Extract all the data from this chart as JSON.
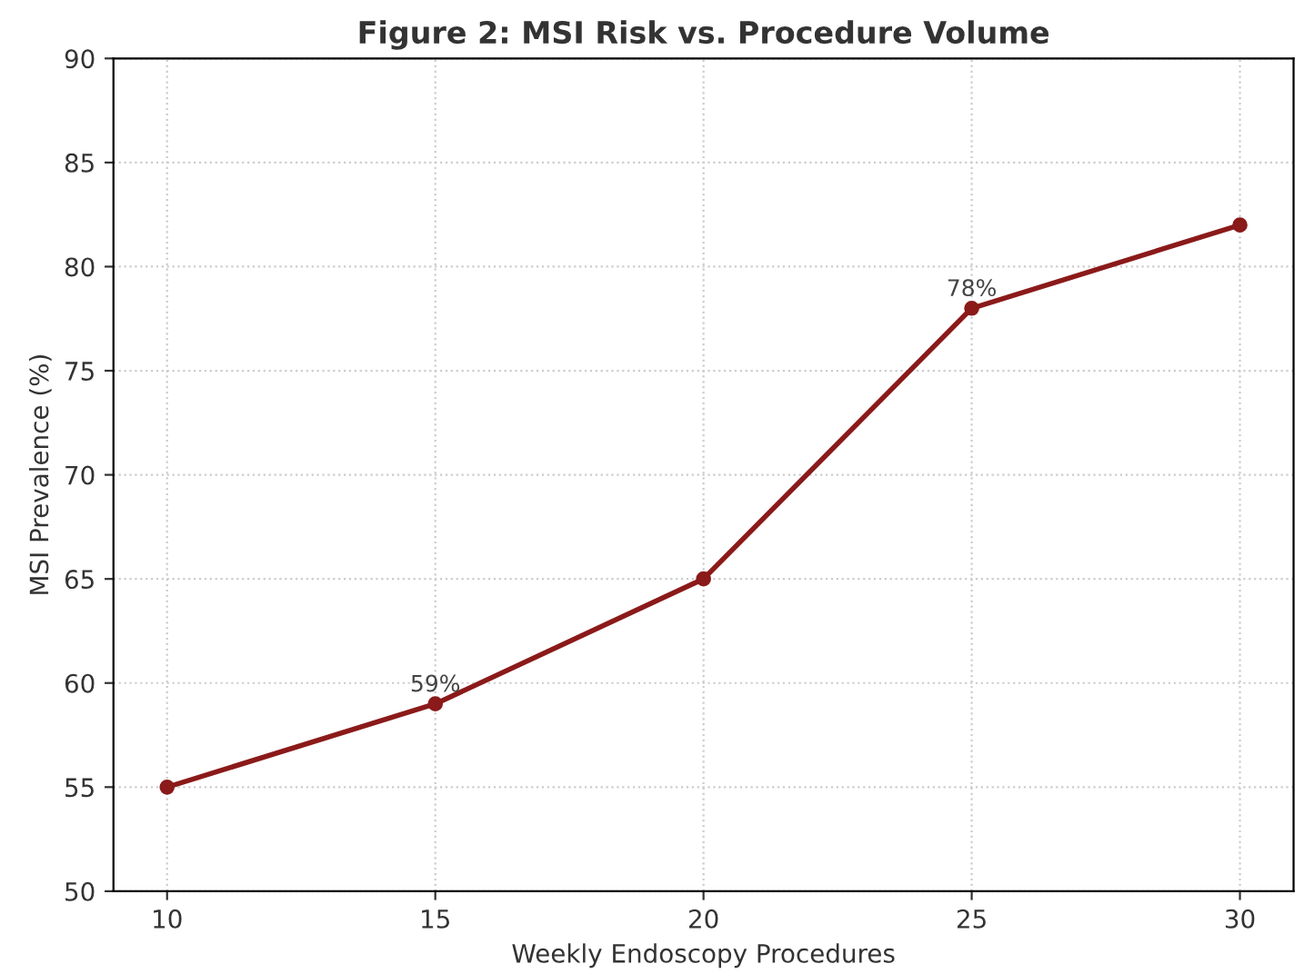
{
  "chart_data": {
    "type": "line",
    "title": "Figure 2: MSI Risk vs. Procedure Volume",
    "xlabel": "Weekly Endoscopy Procedures",
    "ylabel": "MSI Prevalence (%)",
    "x": [
      10,
      15,
      20,
      25,
      30
    ],
    "series": [
      {
        "color": "#8b1a1a",
        "values": [
          55,
          59,
          65,
          78,
          82
        ],
        "value_labels": [
          null,
          "59%",
          null,
          "78%",
          null
        ]
      }
    ],
    "xlim": [
      9,
      31
    ],
    "xticks": [
      10,
      15,
      20,
      25,
      30
    ],
    "ylim": [
      50,
      90
    ],
    "yticks": [
      50,
      55,
      60,
      65,
      70,
      75,
      80,
      85,
      90
    ],
    "grid": true,
    "marker": "circle",
    "line_style": "solid"
  }
}
